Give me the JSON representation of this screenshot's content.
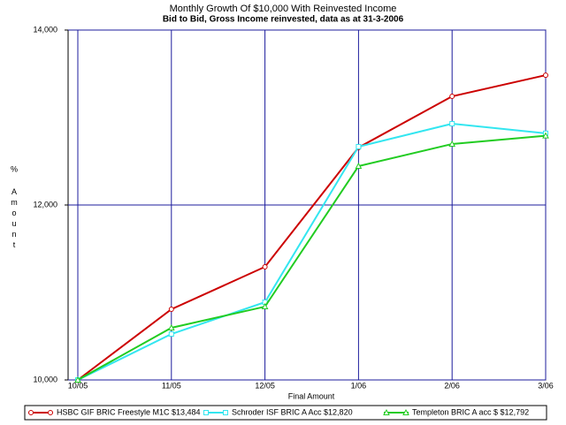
{
  "chart_data": {
    "type": "line",
    "title": "Monthly Growth Of $10,000 With Reinvested Income",
    "subtitle": "Bid to Bid, Gross Income reinvested, data as at 31-3-2006",
    "x_label": "Final Amount",
    "y_unit": "%",
    "y_label": "Amount",
    "categories": [
      "10/05",
      "11/05",
      "12/05",
      "1/06",
      "2/06",
      "3/06"
    ],
    "series": [
      {
        "name": "HSBC GIF BRIC Freestyle M1C $13,484",
        "color": "#cc0000",
        "marker": "circle",
        "values": [
          10000,
          10808,
          11293,
          12657,
          13242,
          13484
        ]
      },
      {
        "name": "Schroder ISF BRIC A Acc $12,820",
        "color": "#33e6f0",
        "marker": "square",
        "values": [
          10000,
          10525,
          10889,
          12667,
          12929,
          12820
        ]
      },
      {
        "name": "Templeton BRIC A acc $ $12,792",
        "color": "#22cc22",
        "marker": "triangle",
        "values": [
          10000,
          10596,
          10838,
          12444,
          12697,
          12792
        ]
      }
    ],
    "ylim": [
      10000,
      14000
    ],
    "yticks": [
      {
        "value": 10000,
        "label": "10,000"
      },
      {
        "value": 12000,
        "label": "12,000"
      },
      {
        "value": 14000,
        "label": "14,000"
      }
    ],
    "grid": true,
    "legend": "bottom"
  }
}
